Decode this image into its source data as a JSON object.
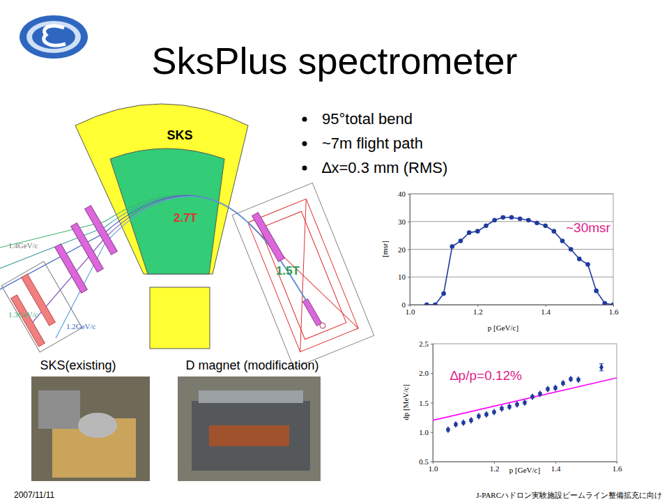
{
  "slide": {
    "title": "SksPlus spectrometer",
    "bullets": [
      "95°total bend",
      "~7m flight path",
      "∆x=0.3 mm (RMS)"
    ],
    "diagram": {
      "magnet_label": "SKS",
      "fields": [
        "2.7T",
        "1.5T"
      ],
      "momenta": [
        "1.4GeV/c",
        "1.3GeV/c",
        "1.2GeV/c"
      ]
    },
    "captions": [
      "SKS(existing)",
      "D magnet (modification)"
    ],
    "footer": {
      "date": "2007/11/11",
      "event": "J-PARCハドロン実験施設ビームライン整備拡充に向け"
    }
  },
  "chart_data": [
    {
      "type": "line",
      "color": "#1f3a9e",
      "marker": "circle",
      "grid": true,
      "xlabel": "p [GeV/c]",
      "ylabel": "[msr]",
      "annotation": "~30msr",
      "x": [
        1.05,
        1.075,
        1.1,
        1.125,
        1.15,
        1.175,
        1.2,
        1.225,
        1.25,
        1.275,
        1.3,
        1.325,
        1.35,
        1.375,
        1.4,
        1.425,
        1.45,
        1.475,
        1.5,
        1.525,
        1.55,
        1.575,
        1.6
      ],
      "values": [
        0,
        0,
        4,
        21,
        23,
        26,
        26.5,
        28.5,
        30.5,
        31.5,
        31.5,
        31,
        30.5,
        29.5,
        28.5,
        26.5,
        23,
        20,
        16.5,
        14.5,
        5,
        0.5,
        0
      ],
      "xlim": [
        1.0,
        1.6
      ],
      "xticks": [
        {
          "value": 1,
          "label": "1.0"
        },
        1.2,
        1.4,
        1.6
      ],
      "ylim": [
        0,
        40
      ],
      "yticks": [
        0,
        10,
        20,
        30,
        40
      ]
    },
    {
      "type": "scatter",
      "grid": false,
      "xlabel": "p [GeV/c]",
      "ylabel": "dp [MeV/c]",
      "annotation": "∆p/p=0.12%",
      "series": [
        {
          "type": "scatter",
          "color": "#1f3a9e",
          "marker": "diamond",
          "x": [
            1.05,
            1.075,
            1.1,
            1.125,
            1.15,
            1.175,
            1.2,
            1.225,
            1.25,
            1.275,
            1.3,
            1.325,
            1.35,
            1.375,
            1.4,
            1.425,
            1.45,
            1.475,
            1.55
          ],
          "values": [
            1.04,
            1.13,
            1.16,
            1.2,
            1.27,
            1.3,
            1.34,
            1.4,
            1.43,
            1.47,
            1.5,
            1.6,
            1.65,
            1.73,
            1.75,
            1.83,
            1.9,
            1.89,
            2.1
          ],
          "errors": [
            0.02,
            0.02,
            0.02,
            0.02,
            0.02,
            0.02,
            0.02,
            0.02,
            0.02,
            0.02,
            0.02,
            0.02,
            0.02,
            0.02,
            0.02,
            0.02,
            0.02,
            0.02,
            0.06
          ]
        },
        {
          "type": "line",
          "color": "#ff00ff",
          "x": [
            1.0,
            1.6
          ],
          "values": [
            1.2,
            1.92
          ]
        }
      ],
      "xlim": [
        1.0,
        1.6
      ],
      "xticks": [
        {
          "value": 1,
          "label": "1.0"
        },
        1.2,
        1.4,
        1.6
      ],
      "ylim": [
        0.5,
        2.5
      ],
      "yticks": [
        0.5,
        {
          "value": 1,
          "label": "1.0"
        },
        1.5,
        {
          "value": 2,
          "label": "2.0"
        },
        2.5
      ]
    }
  ]
}
